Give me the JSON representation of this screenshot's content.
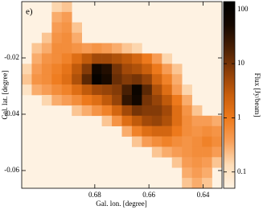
{
  "chart_data": {
    "type": "heatmap",
    "panel_label": "e)",
    "xlabel": "Gal. lon. [degree]",
    "ylabel": "Gal. lat. [degree]",
    "colorbar_label": "Flux [Jy/beam]",
    "xlim": [
      0.707,
      0.633
    ],
    "xticks": [
      0.68,
      0.66,
      0.64
    ],
    "ylim": [
      -0.0663,
      0.0
    ],
    "yticks": [
      -0.02,
      -0.04,
      -0.06
    ],
    "clim": [
      0.05,
      140
    ],
    "cticks": [
      0.1,
      1,
      10,
      100
    ],
    "color_scale": "log",
    "colormap": [
      "#fef2e2",
      "#fdddb8",
      "#f8a05a",
      "#ee7a1c",
      "#c85e0c",
      "#8c3e08",
      "#4a2004",
      "#150800",
      "#000000"
    ],
    "z": [
      [
        null,
        null,
        null,
        0.15,
        0.2,
        null,
        null,
        null,
        null,
        null,
        null,
        null,
        null,
        null,
        null,
        null,
        null,
        null,
        null,
        null
      ],
      [
        null,
        null,
        null,
        0.3,
        0.4,
        null,
        null,
        null,
        null,
        null,
        null,
        null,
        null,
        null,
        null,
        null,
        null,
        null,
        null,
        null
      ],
      [
        null,
        null,
        null,
        0.4,
        0.5,
        0.2,
        null,
        null,
        null,
        null,
        null,
        null,
        null,
        null,
        null,
        null,
        null,
        null,
        null,
        null
      ],
      [
        null,
        null,
        0.2,
        0.5,
        0.6,
        0.3,
        null,
        null,
        null,
        null,
        null,
        null,
        null,
        null,
        null,
        null,
        null,
        null,
        null,
        null
      ],
      [
        null,
        0.2,
        0.3,
        0.6,
        0.6,
        0.5,
        0.4,
        0.5,
        0.4,
        0.3,
        0.2,
        0.15,
        null,
        null,
        null,
        null,
        null,
        null,
        null,
        null
      ],
      [
        null,
        0.3,
        0.5,
        0.6,
        0.8,
        1.5,
        3,
        5,
        5,
        4,
        3,
        2,
        1,
        0.4,
        0.15,
        null,
        null,
        null,
        null,
        null
      ],
      [
        0.15,
        0.4,
        0.6,
        0.8,
        1.2,
        3,
        8,
        60,
        40,
        10,
        5,
        4,
        2.5,
        1,
        0.4,
        0.2,
        null,
        null,
        null,
        null
      ],
      [
        0.2,
        0.5,
        0.6,
        0.9,
        1.5,
        4,
        15,
        100,
        50,
        12,
        8,
        10,
        6,
        2,
        0.8,
        0.3,
        null,
        null,
        null,
        null
      ],
      [
        0.1,
        0.3,
        0.4,
        0.6,
        0.8,
        1.5,
        3,
        5,
        6,
        8,
        20,
        80,
        15,
        4,
        1.5,
        0.4,
        0.15,
        null,
        null,
        null
      ],
      [
        null,
        null,
        0.15,
        0.3,
        0.4,
        0.6,
        1,
        1.5,
        3,
        6,
        30,
        60,
        10,
        6,
        3,
        1,
        0.3,
        null,
        null,
        null
      ],
      [
        null,
        null,
        null,
        null,
        null,
        0.2,
        0.3,
        0.5,
        0.8,
        2,
        5,
        10,
        8,
        8,
        5,
        1.5,
        0.5,
        0.2,
        null,
        null
      ],
      [
        null,
        null,
        null,
        null,
        null,
        null,
        null,
        null,
        0.2,
        0.5,
        1.5,
        3,
        5,
        6,
        4,
        1.5,
        0.6,
        0.4,
        0.4,
        0.3
      ],
      [
        null,
        null,
        null,
        null,
        null,
        null,
        null,
        null,
        null,
        null,
        0.3,
        0.8,
        1.5,
        2,
        2,
        1,
        0.6,
        0.5,
        0.6,
        0.5
      ],
      [
        null,
        null,
        null,
        null,
        null,
        null,
        null,
        null,
        null,
        null,
        null,
        0.2,
        0.4,
        0.6,
        0.8,
        0.6,
        0.5,
        0.6,
        0.8,
        0.6
      ],
      [
        null,
        null,
        null,
        null,
        null,
        null,
        null,
        null,
        null,
        null,
        null,
        null,
        null,
        0.2,
        0.3,
        0.4,
        0.5,
        0.6,
        0.6,
        0.4
      ],
      [
        null,
        null,
        null,
        null,
        null,
        null,
        null,
        null,
        null,
        null,
        null,
        null,
        null,
        null,
        null,
        0.2,
        0.4,
        0.5,
        0.4,
        0.2
      ],
      [
        null,
        null,
        null,
        null,
        null,
        null,
        null,
        null,
        null,
        null,
        null,
        null,
        null,
        null,
        null,
        null,
        0.3,
        0.4,
        0.3,
        null
      ],
      [
        null,
        null,
        null,
        null,
        null,
        null,
        null,
        null,
        null,
        null,
        null,
        null,
        null,
        null,
        null,
        null,
        0.2,
        0.3,
        0.2,
        null
      ]
    ]
  }
}
